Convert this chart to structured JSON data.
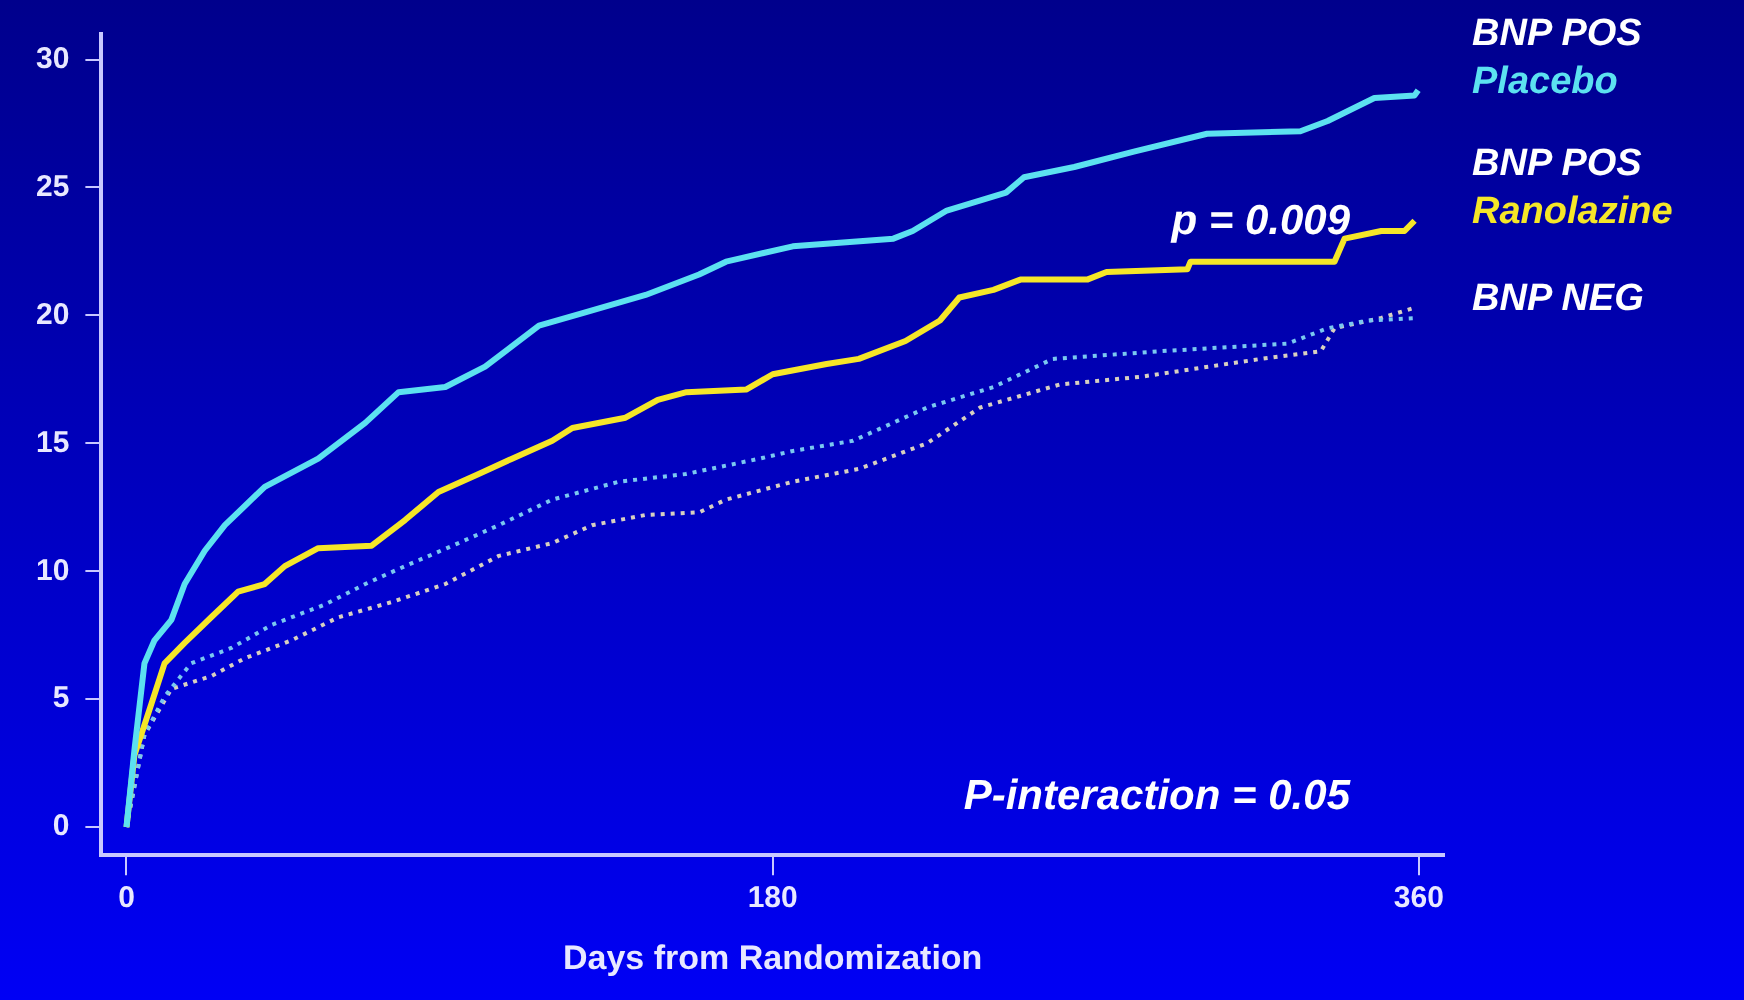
{
  "chart_data": {
    "type": "line",
    "xlabel": "Days from Randomization",
    "xlim": [
      -7,
      367
    ],
    "xticks": [
      0,
      180,
      360
    ],
    "ylim": [
      -1.1,
      31
    ],
    "yticks": [
      0,
      5,
      10,
      15,
      20,
      25,
      30
    ],
    "grid": false,
    "legend": false,
    "marker": "none",
    "annotations": [
      "p = 0.009",
      "P-interaction = 0.05"
    ],
    "series": [
      {
        "name": "BNP POS Placebo",
        "color": "#5ce1f0",
        "line_style": "solid",
        "x": [
          0,
          2.2,
          5,
          7.8,
          12.5,
          16.2,
          21.8,
          27.4,
          38.5,
          53.4,
          66.5,
          75.8,
          88.8,
          99.9,
          114.9,
          127.3,
          144.6,
          159.5,
          167,
          185.6,
          213.6,
          219,
          228.5,
          245,
          250,
          264,
          280.6,
          301,
          327,
          334.6,
          347.6,
          358.8,
          359.8
        ],
        "values": [
          0,
          3.0,
          6.4,
          7.3,
          8.1,
          9.5,
          10.8,
          11.8,
          13.3,
          14.4,
          15.8,
          17.0,
          17.2,
          18.0,
          19.6,
          20.1,
          20.8,
          21.6,
          22.1,
          22.7,
          23.0,
          23.3,
          24.1,
          24.8,
          25.4,
          25.8,
          26.4,
          27.1,
          27.2,
          27.6,
          28.5,
          28.6,
          28.8
        ]
      },
      {
        "name": "BNP POS Ranolazine",
        "color": "#f5e628",
        "line_style": "solid",
        "x": [
          0,
          2.2,
          6.9,
          10.6,
          16.2,
          23.6,
          31.1,
          38.5,
          44.1,
          53.4,
          68.3,
          77.6,
          86.9,
          98.1,
          107.4,
          118.6,
          124.2,
          139,
          148,
          156,
          172.6,
          180,
          195,
          204,
          217,
          226.6,
          232,
          241.5,
          249,
          267.6,
          273,
          295.5,
          296.4,
          336.5,
          339.3,
          349.5,
          356,
          358.8
        ],
        "values": [
          0,
          2.8,
          4.8,
          6.4,
          7.2,
          8.2,
          9.2,
          9.5,
          10.2,
          10.9,
          11.0,
          12.0,
          13.1,
          13.8,
          14.4,
          15.1,
          15.6,
          16.0,
          16.7,
          17.0,
          17.1,
          17.7,
          18.1,
          18.3,
          19.0,
          19.8,
          20.7,
          21.0,
          21.4,
          21.4,
          21.7,
          21.8,
          22.1,
          22.1,
          23.0,
          23.3,
          23.3,
          23.7
        ]
      },
      {
        "color": "#7ac8f0",
        "line_style": "dotted",
        "x": [
          0,
          5,
          10.6,
          18,
          29.2,
          40.4,
          55.3,
          66.5,
          77.6,
          92.5,
          103.7,
          118.6,
          137.2,
          155.8,
          176.3,
          185.6,
          202.4,
          223,
          241.5,
          258,
          288,
          323.5,
          334.6,
          345.8,
          359.8
        ],
        "values": [
          0,
          3.6,
          5.1,
          6.4,
          7.0,
          7.9,
          8.7,
          9.5,
          10.2,
          11.1,
          11.8,
          12.8,
          13.5,
          13.8,
          14.4,
          14.7,
          15.1,
          16.4,
          17.2,
          18.3,
          18.6,
          18.9,
          19.5,
          19.8,
          19.9
        ]
      },
      {
        "name": "BNP NEG",
        "color": "#d8d0c0",
        "line_style": "dotted",
        "x": [
          0,
          5,
          12.5,
          23.6,
          33,
          46,
          59,
          74,
          88.8,
          103.7,
          118.6,
          129.7,
          144.6,
          159.5,
          167,
          185.6,
          204,
          223,
          237.8,
          260,
          282.5,
          316,
          332.7,
          336.5,
          349.5,
          358.8
        ],
        "values": [
          0,
          3.6,
          5.4,
          5.9,
          6.6,
          7.3,
          8.2,
          8.8,
          9.5,
          10.6,
          11.1,
          11.8,
          12.2,
          12.3,
          12.8,
          13.5,
          14.0,
          15.0,
          16.4,
          17.3,
          17.6,
          18.3,
          18.6,
          19.5,
          19.9,
          20.3
        ]
      }
    ]
  }
}
